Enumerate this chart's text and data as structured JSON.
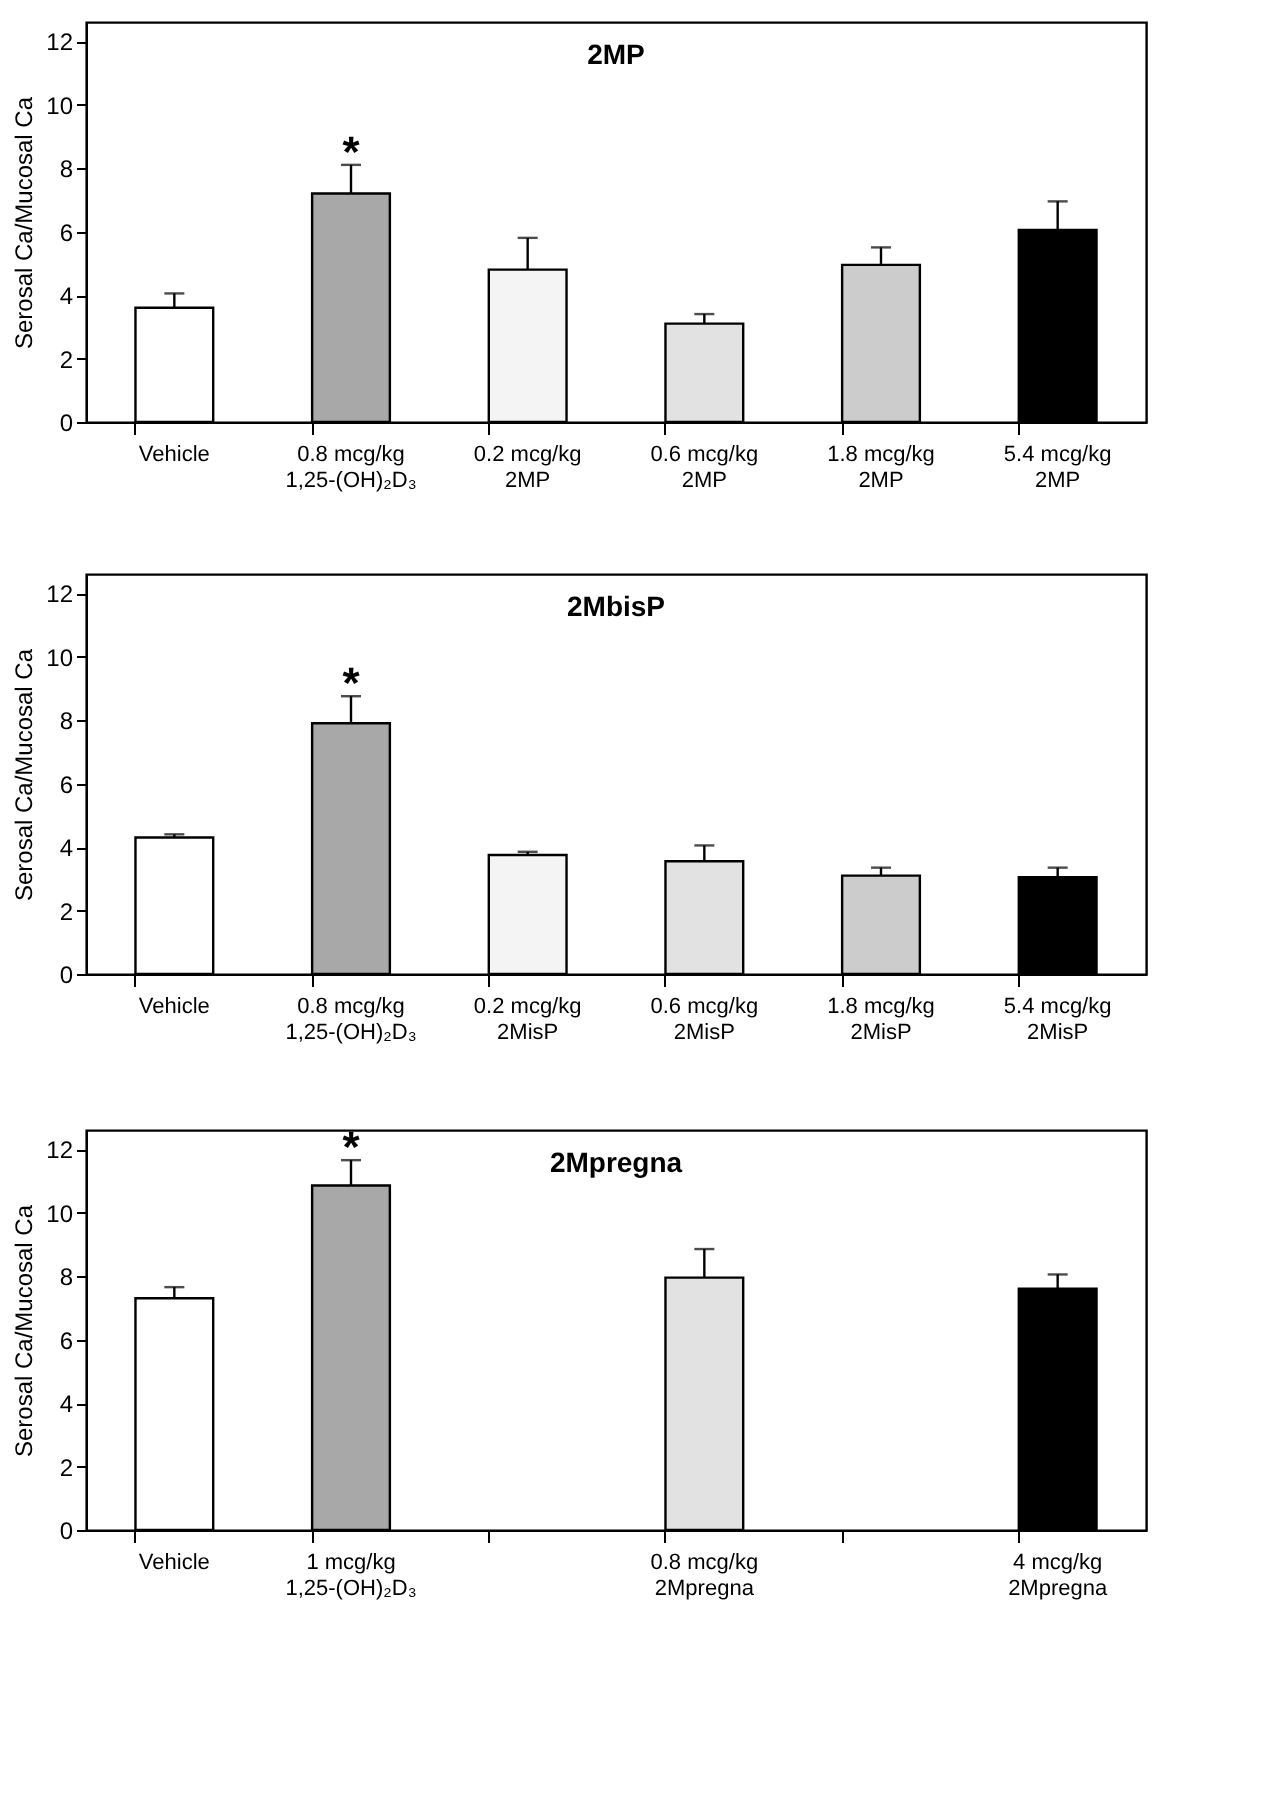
{
  "chart_data": [
    {
      "type": "bar",
      "title": "2MP",
      "ylabel": "Serosal Ca/Mucosal Ca",
      "categories": [
        "Vehicle",
        "0.8 mcg/kg\n1,25-(OH)₂D₃",
        "0.2 mcg/kg\n2MP",
        "0.6 mcg/kg\n2MP",
        "1.8 mcg/kg\n2MP",
        "5.4 mcg/kg\n2MP"
      ],
      "values": [
        3.6,
        7.2,
        4.8,
        3.1,
        4.95,
        6.05
      ],
      "errors": [
        [
          3.6,
          4.05
        ],
        [
          7.2,
          8.1
        ],
        [
          4.8,
          5.8
        ],
        [
          3.1,
          3.4
        ],
        [
          4.95,
          5.5
        ],
        [
          6.05,
          6.95
        ]
      ],
      "colors": [
        "#ffffff",
        "#a8a8a8",
        "#f4f4f4",
        "#e2e2e2",
        "#cccccc",
        "#000000"
      ],
      "annotations": [
        {
          "text": "*",
          "x": "0.8 mcg/kg\n1,25-(OH)₂D₃",
          "y": 8.1
        }
      ],
      "ylim": [
        0,
        12.6
      ],
      "yticks": [
        0,
        2,
        4,
        6,
        8,
        10,
        12
      ],
      "grid": false
    },
    {
      "type": "bar",
      "title": "2MbisP",
      "ylabel": "Serosal Ca/Mucosal Ca",
      "categories": [
        "Vehicle",
        "0.8 mcg/kg\n1,25-(OH)₂D₃",
        "0.2 mcg/kg\n2MisP",
        "0.6 mcg/kg\n2MisP",
        "1.8 mcg/kg\n2MisP",
        "5.4 mcg/kg\n2MisP"
      ],
      "values": [
        4.3,
        7.9,
        3.75,
        3.55,
        3.1,
        3.05
      ],
      "errors": [
        [
          4.3,
          4.4
        ],
        [
          7.9,
          8.75
        ],
        [
          3.75,
          3.85
        ],
        [
          3.55,
          4.05
        ],
        [
          3.1,
          3.35
        ],
        [
          3.05,
          3.35
        ]
      ],
      "colors": [
        "#ffffff",
        "#a8a8a8",
        "#f4f4f4",
        "#e2e2e2",
        "#cccccc",
        "#000000"
      ],
      "annotations": [
        {
          "text": "*",
          "x": "0.8 mcg/kg\n1,25-(OH)₂D₃",
          "y": 8.75
        }
      ],
      "ylim": [
        0,
        12.6
      ],
      "yticks": [
        0,
        2,
        4,
        6,
        8,
        10,
        12
      ],
      "grid": false
    },
    {
      "type": "bar",
      "title": "2Mpregna",
      "ylabel": "Serosal Ca/Mucosal Ca",
      "categories": [
        "Vehicle",
        "1 mcg/kg\n1,25-(OH)₂D₃",
        null,
        "0.8 mcg/kg\n2Mpregna",
        null,
        "4 mcg/kg\n2Mpregna"
      ],
      "values": [
        7.3,
        10.85,
        null,
        7.95,
        null,
        7.6
      ],
      "errors": [
        [
          7.3,
          7.65
        ],
        [
          10.85,
          11.65
        ],
        null,
        [
          7.95,
          8.85
        ],
        null,
        [
          7.6,
          8.05
        ]
      ],
      "colors": [
        "#ffffff",
        "#a8a8a8",
        null,
        "#e2e2e2",
        null,
        "#000000"
      ],
      "annotations": [
        {
          "text": "*",
          "x": "1 mcg/kg\n1,25-(OH)₂D₃",
          "y": 11.65
        }
      ],
      "ylim": [
        0,
        12.6
      ],
      "yticks": [
        0,
        2,
        4,
        6,
        8,
        10,
        12
      ],
      "grid": false
    }
  ]
}
